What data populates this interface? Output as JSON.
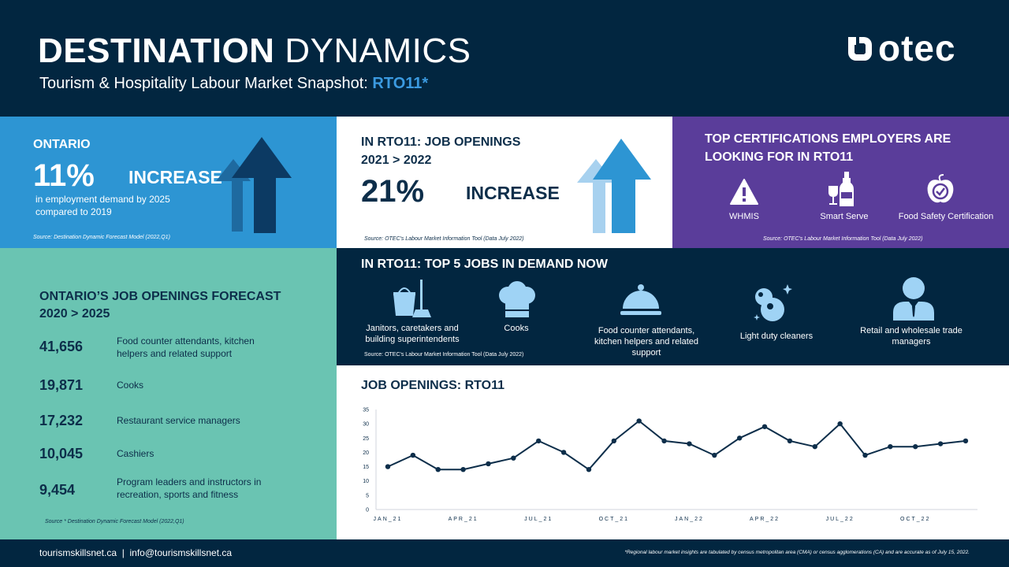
{
  "header": {
    "title_bold": "DESTINATION",
    "title_normal": "DYNAMICS",
    "subtitle_prefix": "Tourism & Hospitality Labour Market Snapshot: ",
    "subtitle_highlight": "RTO11*",
    "logo_text": "otec"
  },
  "ontario": {
    "label": "ONTARIO",
    "percent": "11%",
    "increase": "INCREASE",
    "desc_line1": "in employment demand by 2025",
    "desc_line2": "compared to 2019",
    "source": "Source: Destination Dynamic Forecast Model (2022,Q1)"
  },
  "rto_openings": {
    "label_line1": "IN RTO11: JOB OPENINGS",
    "label_line2": "2021 > 2022",
    "percent": "21%",
    "increase": "INCREASE",
    "source": "Source: OTEC's Labour Market Information Tool (Data July 2022)"
  },
  "certifications": {
    "title_line1": "TOP CERTIFICATIONS EMPLOYERS ARE",
    "title_line2": "LOOKING FOR IN RTO11",
    "items": [
      {
        "label": "WHMIS",
        "icon": "warning-icon"
      },
      {
        "label": "Smart Serve",
        "icon": "wine-bottle-icon"
      },
      {
        "label": "Food Safety Certification",
        "icon": "apple-check-icon"
      }
    ],
    "source": "Source: OTEC's Labour Market Information Tool (Data July 2022)"
  },
  "forecast": {
    "title_line1": "ONTARIO’S JOB OPENINGS FORECAST",
    "title_line2": "2020 > 2025",
    "items": [
      {
        "value": "41,656",
        "line1": "Food counter attendants, kitchen",
        "line2": "helpers and related support"
      },
      {
        "value": "19,871",
        "line1": "Cooks",
        "line2": ""
      },
      {
        "value": "17,232",
        "line1": "Restaurant service managers",
        "line2": ""
      },
      {
        "value": "10,045",
        "line1": "Cashiers",
        "line2": ""
      },
      {
        "value": "9,454",
        "line1": "Program leaders and instructors in",
        "line2": "recreation, sports and fitness"
      }
    ],
    "source": "Source * Destination Dynamic Forecast Model (2022,Q1)"
  },
  "top5": {
    "title": "IN RTO11: TOP 5 JOBS IN DEMAND NOW",
    "items": [
      {
        "line1": "Janitors, caretakers and",
        "line2": "building superintendents",
        "line3": "",
        "icon": "cleaning-bucket-icon"
      },
      {
        "line1": "Cooks",
        "line2": "",
        "line3": "",
        "icon": "chef-hat-icon"
      },
      {
        "line1": "Food counter attendants,",
        "line2": "kitchen helpers and related",
        "line3": "support",
        "icon": "food-cloche-icon"
      },
      {
        "line1": "Light duty cleaners",
        "line2": "",
        "line3": "",
        "icon": "cleaning-bubbles-icon"
      },
      {
        "line1": "Retail and wholesale trade",
        "line2": "managers",
        "line3": "",
        "icon": "manager-icon"
      }
    ],
    "source": "Source: OTEC's Labour Market Information Tool (Data July 2022)"
  },
  "chart_data": {
    "type": "line",
    "title": "JOB OPENINGS: RTO11",
    "x": [
      "JAN_21",
      "FEB_21",
      "MAR_21",
      "APR_21",
      "MAY_21",
      "JUN_21",
      "JUL_21",
      "AUG_21",
      "SEP_21",
      "OCT_21",
      "NOV_21",
      "DEC_21",
      "JAN_22",
      "FEB_22",
      "MAR_22",
      "APR_22",
      "MAY_22",
      "JUN_22",
      "JUL_22",
      "AUG_22",
      "SEP_22",
      "OCT_22",
      "NOV_22",
      "DEC_22"
    ],
    "tick_labels": [
      "JAN_21",
      "APR_21",
      "JUL_21",
      "OCT_21",
      "JAN_22",
      "APR_22",
      "JUL_22",
      "OCT_22"
    ],
    "values": [
      15,
      19,
      14,
      14,
      16,
      18,
      24,
      20,
      14,
      24,
      31,
      24,
      23,
      19,
      25,
      29,
      24,
      22,
      30,
      19,
      22,
      22,
      23,
      24
    ],
    "ylim": [
      0,
      35
    ],
    "yticks": [
      0,
      5,
      10,
      15,
      20,
      25,
      30,
      35
    ],
    "color": "#0d2e4a"
  },
  "footer": {
    "contact": "tourismskillsnet.ca  |  info@tourismskillsnet.ca",
    "note": "*Regional labour market insights are tabulated by census metropolitan area (CMA) or census agglomerations (CA) and are accurate as of July 15, 2022."
  }
}
